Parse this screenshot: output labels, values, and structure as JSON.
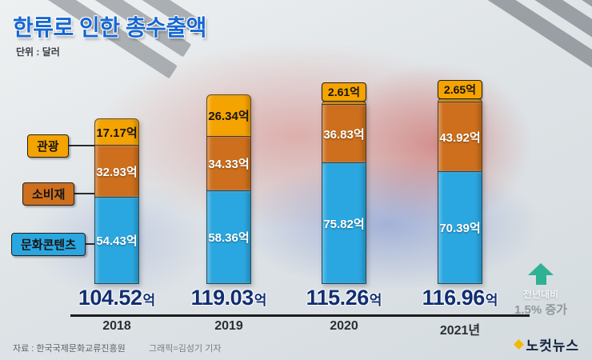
{
  "header": {
    "title": "한류로 인한 총수출액",
    "unit": "단위 : 달러"
  },
  "legend": [
    {
      "label": "관광",
      "color": "#f5a300"
    },
    {
      "label": "소비재",
      "color": "#cd6f1d"
    },
    {
      "label": "문화콘텐츠",
      "color": "#2aa7e0"
    }
  ],
  "chart_data": {
    "type": "bar",
    "stacked": true,
    "title": "한류로 인한 총수출액",
    "unit_label": "단위 : 달러",
    "value_suffix": "억",
    "categories": [
      "2018",
      "2019",
      "2020",
      "2021년"
    ],
    "series": [
      {
        "name": "문화콘텐츠",
        "color": "#2aa7e0",
        "text_color": "#ffffff",
        "values": [
          54.43,
          58.36,
          75.82,
          70.39
        ]
      },
      {
        "name": "소비재",
        "color": "#cd6f1d",
        "text_color": "#ffffff",
        "values": [
          32.93,
          34.33,
          36.83,
          43.92
        ]
      },
      {
        "name": "관광",
        "color": "#f5a300",
        "text_color": "#161616",
        "values": [
          17.17,
          26.34,
          2.61,
          2.65
        ]
      }
    ],
    "totals": [
      104.52,
      119.03,
      115.26,
      116.96
    ],
    "ylim": [
      0,
      125
    ],
    "grid": false,
    "legend_position": "left"
  },
  "annotation": {
    "line1": "전년대비",
    "line2": "1.5% 증가",
    "arrow_color": "#2fb193"
  },
  "footer": {
    "source": "자료 : 한국국제문화교류진흥원",
    "credit": "그래픽=김성기 기자",
    "logo": "노컷뉴스"
  }
}
